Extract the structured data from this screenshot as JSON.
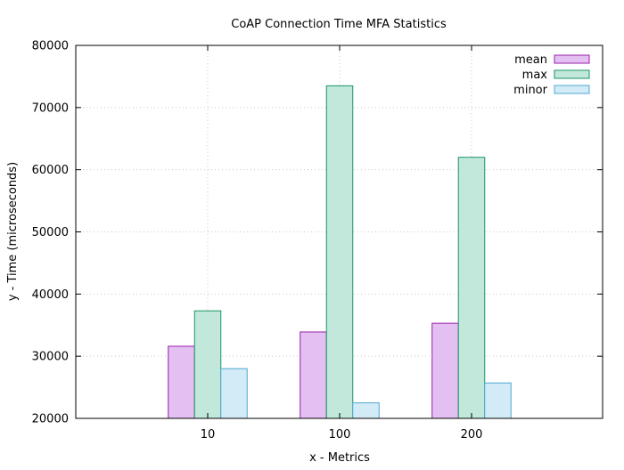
{
  "chart_data": {
    "type": "bar",
    "title": "CoAP Connection Time MFA Statistics",
    "xlabel": "x - Metrics",
    "ylabel": "y - Time (microseconds)",
    "categories": [
      "10",
      "100",
      "200"
    ],
    "ylim": [
      20000,
      80000
    ],
    "yticks": [
      20000,
      30000,
      40000,
      50000,
      60000,
      70000,
      80000
    ],
    "grid": true,
    "legend_position": "top-right",
    "series": [
      {
        "name": "mean",
        "values": [
          31600,
          33900,
          35300
        ],
        "fill": "#e4bff2",
        "stroke": "#9a1fa8"
      },
      {
        "name": "max",
        "values": [
          37300,
          73500,
          62000
        ],
        "fill": "#c1e8da",
        "stroke": "#1a9565"
      },
      {
        "name": "minor",
        "values": [
          28000,
          22500,
          25700
        ],
        "fill": "#d2ebf6",
        "stroke": "#4fa8d4"
      }
    ]
  }
}
